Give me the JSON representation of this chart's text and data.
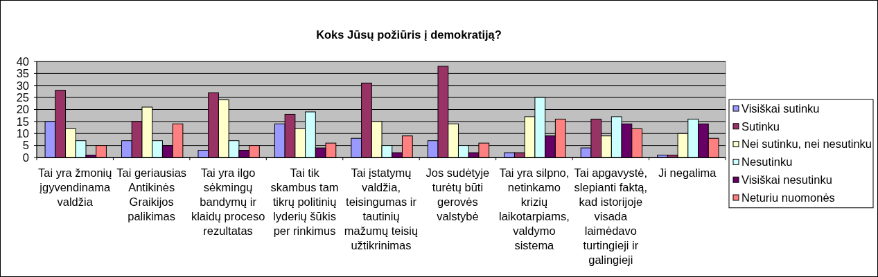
{
  "chart_data": {
    "type": "bar",
    "title": "Koks Jūsų požiūris į demokratiją?",
    "categories": [
      "Tai yra žmonių įgyvendinama valdžia",
      "Tai geriausias Antikinės Graikijos palikimas",
      "Tai yra ilgo sėkmingų bandymų ir klaidų proceso rezultatas",
      "Tai tik skambus tam tikrų politinių lyderių šūkis per rinkimus",
      "Tai įstatymų valdžia, teisingumas ir tautinių mažumų teisių užtikrinimas",
      "Jos sudėtyje turėtų būti gerovės valstybė",
      "Tai yra silpno, netinkamo krizių laikotarpiams, valdymo sistema",
      "Tai apgavystė, slepianti faktą, kad istorijoje visada laimėdavo turtingieji ir galingieji",
      "Ji negalima"
    ],
    "series": [
      {
        "name": "Visiškai sutinku",
        "color": "#9999ff",
        "values": [
          15,
          7,
          3,
          14,
          8,
          7,
          2,
          4,
          1
        ]
      },
      {
        "name": "Sutinku",
        "color": "#993366",
        "values": [
          28,
          15,
          27,
          18,
          31,
          38,
          2,
          16,
          1
        ]
      },
      {
        "name": "Nei sutinku, nei nesutinku",
        "color": "#ffffcc",
        "values": [
          12,
          21,
          24,
          12,
          15,
          14,
          17,
          9,
          10
        ]
      },
      {
        "name": "Nesutinku",
        "color": "#ccffff",
        "values": [
          7,
          7,
          7,
          19,
          5,
          5,
          25,
          17,
          16
        ]
      },
      {
        "name": "Visiškai nesutinku",
        "color": "#660066",
        "values": [
          1,
          5,
          3,
          4,
          2,
          2,
          9,
          14,
          14
        ]
      },
      {
        "name": "Neturiu nuomonės",
        "color": "#ff8080",
        "values": [
          5,
          14,
          5,
          6,
          9,
          6,
          16,
          12,
          8
        ]
      }
    ],
    "ylim": [
      0,
      40
    ],
    "yticks": [
      0,
      5,
      10,
      15,
      20,
      25,
      30,
      35,
      40
    ],
    "grid": "y",
    "legend": "right"
  }
}
